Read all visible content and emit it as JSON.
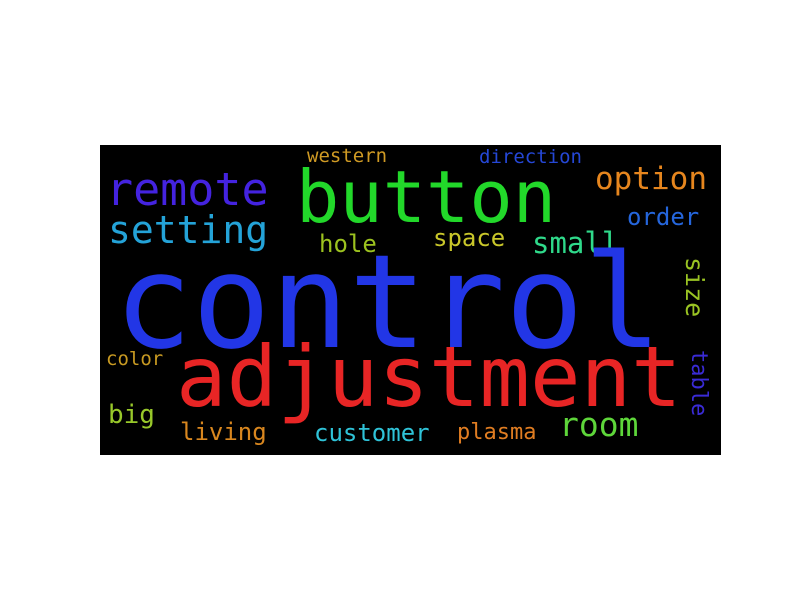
{
  "word_cloud": {
    "background": "#000000",
    "words": {
      "control": {
        "text": "control",
        "color": "#2236e6"
      },
      "button": {
        "text": "button",
        "color": "#22d82a"
      },
      "adjustment": {
        "text": "adjustment",
        "color": "#e82525"
      },
      "remote": {
        "text": "remote",
        "color": "#4423e0"
      },
      "setting": {
        "text": "setting",
        "color": "#24a3d8"
      },
      "option": {
        "text": "option",
        "color": "#e6861e"
      },
      "small": {
        "text": "small",
        "color": "#2fd98a"
      },
      "order": {
        "text": "order",
        "color": "#2566dc"
      },
      "hole": {
        "text": "hole",
        "color": "#9cc21f"
      },
      "space": {
        "text": "space",
        "color": "#c9c72a"
      },
      "western": {
        "text": "western",
        "color": "#cf9a24"
      },
      "direction": {
        "text": "direction",
        "color": "#2547d6"
      },
      "size": {
        "text": "size",
        "color": "#9ac423"
      },
      "table": {
        "text": "table",
        "color": "#3a2bd6"
      },
      "color": {
        "text": "color",
        "color": "#c89a22"
      },
      "big": {
        "text": "big",
        "color": "#98c82a"
      },
      "living": {
        "text": "living",
        "color": "#d9871f"
      },
      "customer": {
        "text": "customer",
        "color": "#2fc3d8"
      },
      "plasma": {
        "text": "plasma",
        "color": "#e07d22"
      },
      "room": {
        "text": "room",
        "color": "#5ed63a"
      }
    }
  }
}
